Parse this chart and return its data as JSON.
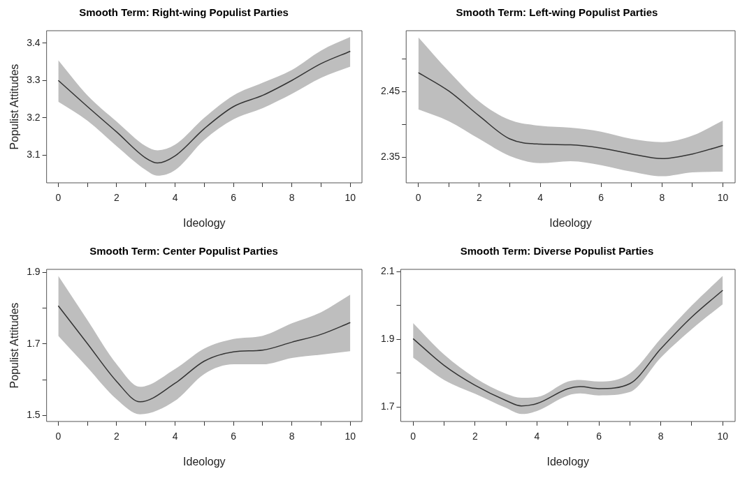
{
  "chart_data": [
    {
      "type": "line",
      "title": "Smooth Term: Right-wing Populist Parties",
      "xlabel": "Ideology",
      "ylabel": "Populist Attitudes",
      "xlim": [
        -0.4,
        10.4
      ],
      "ylim": [
        3.026,
        3.433
      ],
      "xticks": [
        0,
        {
          "value": 1,
          "label": null
        },
        2,
        {
          "value": 3,
          "label": null
        },
        4,
        {
          "value": 5,
          "label": null
        },
        6,
        {
          "value": 7,
          "label": null
        },
        8,
        {
          "value": 9,
          "label": null
        },
        10
      ],
      "yticks": [
        3.1,
        3.2,
        3.3,
        3.4
      ],
      "grid": false,
      "legend": false,
      "marker": "none",
      "line_style": "solid",
      "series": [
        {
          "color": "#333333",
          "x": [
            0,
            1,
            2,
            3,
            3.4,
            4,
            5,
            6,
            7,
            8,
            9,
            10
          ],
          "values": [
            3.3,
            3.23,
            3.162,
            3.092,
            3.079,
            3.098,
            3.171,
            3.23,
            3.26,
            3.3,
            3.345,
            3.378
          ],
          "lower": [
            3.243,
            3.192,
            3.124,
            3.06,
            3.045,
            3.06,
            3.141,
            3.196,
            3.226,
            3.264,
            3.307,
            3.337
          ],
          "upper": [
            3.354,
            3.26,
            3.19,
            3.124,
            3.113,
            3.128,
            3.2,
            3.26,
            3.294,
            3.328,
            3.38,
            3.416
          ]
        }
      ]
    },
    {
      "type": "line",
      "title": "Smooth Term: Left-wing Populist Parties",
      "xlabel": "Ideology",
      "xlim": [
        -0.4,
        10.4
      ],
      "ylim": [
        2.311,
        2.543
      ],
      "xticks": [
        0,
        {
          "value": 1,
          "label": null
        },
        2,
        {
          "value": 3,
          "label": null
        },
        4,
        {
          "value": 5,
          "label": null
        },
        6,
        {
          "value": 7,
          "label": null
        },
        8,
        {
          "value": 9,
          "label": null
        },
        10
      ],
      "yticks": [
        2.35,
        {
          "value": 2.4,
          "label": null
        },
        2.45,
        {
          "value": 2.5,
          "label": null
        }
      ],
      "grid": false,
      "legend": false,
      "marker": "none",
      "line_style": "solid",
      "series": [
        {
          "color": "#333333",
          "x": [
            0,
            1,
            2,
            3,
            4,
            5,
            6,
            7,
            8,
            9,
            10
          ],
          "values": [
            2.479,
            2.451,
            2.413,
            2.378,
            2.37,
            2.369,
            2.364,
            2.355,
            2.348,
            2.355,
            2.368
          ],
          "lower": [
            2.423,
            2.405,
            2.378,
            2.352,
            2.341,
            2.344,
            2.338,
            2.328,
            2.321,
            2.327,
            2.328
          ],
          "upper": [
            2.533,
            2.481,
            2.435,
            2.407,
            2.398,
            2.395,
            2.389,
            2.378,
            2.373,
            2.383,
            2.406
          ]
        }
      ]
    },
    {
      "type": "line",
      "title": "Smooth Term: Center Populist Parties",
      "xlabel": "Ideology",
      "ylabel": "Populist Attitudes",
      "xlim": [
        -0.4,
        10.4
      ],
      "ylim": [
        1.483,
        1.909
      ],
      "xticks": [
        0,
        {
          "value": 1,
          "label": null
        },
        2,
        {
          "value": 3,
          "label": null
        },
        4,
        {
          "value": 5,
          "label": null
        },
        6,
        {
          "value": 7,
          "label": null
        },
        8,
        {
          "value": 9,
          "label": null
        },
        10
      ],
      "yticks": [
        1.5,
        {
          "value": 1.6,
          "label": null
        },
        1.7,
        {
          "value": 1.8,
          "label": null
        },
        1.9
      ],
      "grid": false,
      "legend": false,
      "marker": "none",
      "line_style": "solid",
      "series": [
        {
          "color": "#333333",
          "x": [
            0,
            1,
            2,
            2.8,
            4,
            5,
            6,
            7,
            8,
            9,
            10
          ],
          "values": [
            1.807,
            1.701,
            1.595,
            1.538,
            1.59,
            1.652,
            1.678,
            1.683,
            1.705,
            1.727,
            1.76
          ],
          "lower": [
            1.723,
            1.634,
            1.545,
            1.503,
            1.541,
            1.616,
            1.643,
            1.643,
            1.661,
            1.67,
            1.68
          ],
          "upper": [
            1.891,
            1.767,
            1.643,
            1.58,
            1.63,
            1.687,
            1.714,
            1.723,
            1.758,
            1.789,
            1.838
          ]
        }
      ]
    },
    {
      "type": "line",
      "title": "Smooth Term: Diverse Populist Parties",
      "xlabel": "Ideology",
      "xlim": [
        -0.4,
        10.4
      ],
      "ylim": [
        1.657,
        2.107
      ],
      "xticks": [
        0,
        {
          "value": 1,
          "label": null
        },
        2,
        {
          "value": 3,
          "label": null
        },
        4,
        {
          "value": 5,
          "label": null
        },
        6,
        {
          "value": 7,
          "label": null
        },
        8,
        {
          "value": 9,
          "label": null
        },
        10
      ],
      "yticks": [
        1.7,
        {
          "value": 1.8,
          "label": null
        },
        1.9,
        {
          "value": 2.0,
          "label": null
        },
        2.1
      ],
      "grid": false,
      "legend": false,
      "marker": "none",
      "line_style": "solid",
      "series": [
        {
          "color": "#333333",
          "x": [
            0,
            1,
            2,
            3,
            3.5,
            4,
            5,
            5.4,
            6,
            7,
            8,
            9,
            10
          ],
          "values": [
            1.902,
            1.823,
            1.764,
            1.719,
            1.703,
            1.71,
            1.754,
            1.76,
            1.754,
            1.769,
            1.872,
            1.966,
            2.045
          ],
          "lower": [
            1.846,
            1.78,
            1.739,
            1.697,
            1.679,
            1.688,
            1.734,
            1.74,
            1.734,
            1.744,
            1.846,
            1.93,
            2.004
          ],
          "upper": [
            1.948,
            1.855,
            1.786,
            1.739,
            1.727,
            1.729,
            1.775,
            1.78,
            1.775,
            1.799,
            1.902,
            2.0,
            2.088
          ]
        }
      ]
    }
  ]
}
